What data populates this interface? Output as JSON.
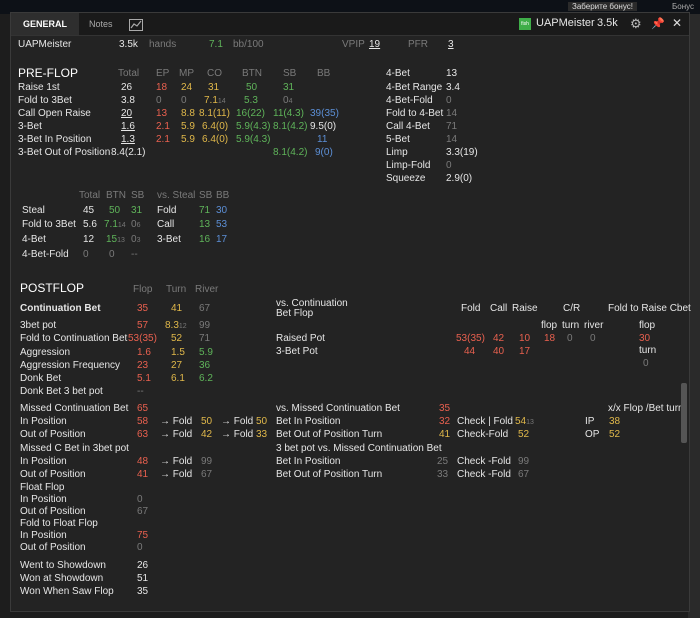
{
  "tabs": {
    "general": "GENERAL",
    "notes": "Notes"
  },
  "titlebar": {
    "player": "UAPMeister",
    "hands": "3.5k",
    "fish_badge": "fish"
  },
  "bg": {
    "bonus": "Заберите бонус!",
    "bonus2": "Бонус"
  },
  "summary": {
    "player": "UAPMeister",
    "hands_count": "3.5k",
    "hands_label": "hands",
    "bb100_val": "7.1",
    "bb100_label": "bb/100",
    "vpip_label": "VPIP",
    "vpip": "19",
    "pfr_label": "PFR",
    "pfr": "3"
  },
  "preflop": {
    "title": "PRE-FLOP",
    "headers": [
      "Total",
      "EP",
      "MP",
      "CO",
      "BTN",
      "SB",
      "BB"
    ],
    "rows": [
      {
        "label": "Raise 1st",
        "total": "26",
        "ep": "18",
        "mp": "24",
        "co": "31",
        "btn": "50",
        "sb": "31",
        "bb": ""
      },
      {
        "label": "Fold to 3Bet",
        "total": "3.8",
        "ep": "0",
        "mp": "0",
        "co": "7.1",
        "co_sub": "14",
        "btn": "5.3",
        "sb": "0",
        "sb_sub": "4",
        "bb": ""
      },
      {
        "label": "Call Open Raise",
        "total": "20",
        "ep": "13",
        "mp": "8.8",
        "co": "8.1(11)",
        "btn": "16(22)",
        "sb": "11(4.3)",
        "bb": "39(35)"
      },
      {
        "label": "3-Bet",
        "total": "1.6",
        "ep": "2.1",
        "mp": "5.9",
        "co": "6.4(0)",
        "btn": "5.9(4.3)",
        "sb": "8.1(4.2)",
        "bb": "9.5(0)"
      },
      {
        "label": "3-Bet In Position",
        "total": "1.3",
        "ep": "2.1",
        "mp": "5.9",
        "co": "6.4(0)",
        "btn": "5.9(4.3)",
        "sb": "",
        "bb": "11"
      },
      {
        "label": "3-Bet Out of Position",
        "total": "8.4(2.1)",
        "ep": "",
        "mp": "",
        "co": "",
        "btn": "",
        "sb": "8.1(4.2)",
        "bb": "9(0)"
      }
    ],
    "right": [
      {
        "label": "4-Bet",
        "value": "13"
      },
      {
        "label": "4-Bet Range",
        "value": "3.4"
      },
      {
        "label": "4-Bet-Fold",
        "value": "0"
      },
      {
        "label": "Fold to 4-Bet",
        "value": "14"
      },
      {
        "label": "Call 4-Bet",
        "value": "71"
      },
      {
        "label": "5-Bet",
        "value": "14"
      },
      {
        "label": "Limp",
        "value": "3.3(19)"
      },
      {
        "label": "Limp-Fold",
        "value": "0"
      },
      {
        "label": "Squeeze",
        "value": "2.9(0)"
      }
    ]
  },
  "steal": {
    "headers": [
      "Total",
      "BTN",
      "SB"
    ],
    "rows": [
      {
        "label": "Steal",
        "total": "45",
        "btn": "50",
        "sb": "31"
      },
      {
        "label": "Fold to 3Bet",
        "total": "5.6",
        "btn": "7.1",
        "btn_sub": "14",
        "sb": "0",
        "sb_sub": "6"
      },
      {
        "label": "4-Bet",
        "total": "12",
        "btn": "15",
        "btn_sub": "13",
        "sb": "0",
        "sb_sub": "3"
      },
      {
        "label": "4-Bet-Fold",
        "total": "0",
        "btn": "0",
        "sb": "--"
      }
    ],
    "vs_headers": [
      "vs. Steal",
      "SB",
      "BB"
    ],
    "vs_rows": [
      {
        "label": "Fold",
        "sb": "71",
        "bb": "30"
      },
      {
        "label": "Call",
        "sb": "13",
        "bb": "53"
      },
      {
        "label": "3-Bet",
        "sb": "16",
        "bb": "17"
      }
    ]
  },
  "postflop": {
    "title": "POSTFLOP",
    "headers": [
      "Flop",
      "Turn",
      "River"
    ],
    "cbet_label": "Continuation Bet",
    "cbet": [
      "35",
      "41",
      "67"
    ],
    "rows": [
      {
        "label": "3bet pot",
        "flop": "57",
        "turn": "8.3",
        "turn_sub": "12",
        "river": "99"
      },
      {
        "label": "Fold to Continuation Bet",
        "flop": "53(35)",
        "turn": "52",
        "river": "71"
      },
      {
        "label": "Aggression",
        "flop": "1.6",
        "turn": "1.5",
        "river": "5.9"
      },
      {
        "label": "Aggression Frequency",
        "flop": "23",
        "turn": "27",
        "river": "36"
      },
      {
        "label": "Donk Bet",
        "flop": "5.1",
        "turn": "6.1",
        "river": "6.2"
      },
      {
        "label": "Donk Bet 3 bet pot",
        "flop": "--",
        "turn": "",
        "river": ""
      }
    ],
    "vs_cbet": {
      "title_l1": "vs. Continuation",
      "title_l2": "Bet Flop",
      "headers": [
        "Fold",
        "Call",
        "Raise",
        "C/R",
        "Fold to Raise Cbet"
      ],
      "cr_sub": [
        "flop",
        "turn",
        "river"
      ],
      "ftr_sub": [
        "flop",
        "turn"
      ],
      "raised_pot": {
        "label": "Raised Pot",
        "fold": "53(35)",
        "call": "42",
        "raise": "10",
        "cr_flop": "18",
        "cr_turn": "0",
        "cr_river": "0",
        "ftr_flop": "30"
      },
      "three_bet_pot": {
        "label": "3-Bet Pot",
        "fold": "44",
        "call": "40",
        "raise": "17",
        "ftr_turn": "0"
      }
    }
  },
  "missed": {
    "title": "Missed Continuation Bet",
    "title_val": "65",
    "in_pos": {
      "label": "In Position",
      "v": "58",
      "fold_label": "→ Fold",
      "fold1": "50",
      "fold2_label": "→ Fold",
      "fold2": "50"
    },
    "out_pos": {
      "label": "Out of Position",
      "v": "63",
      "fold_label": "→ Fold",
      "fold1": "42",
      "fold2_label": "→ Fold",
      "fold2": "33"
    },
    "cbet3_title": "Missed C Bet in 3bet pot",
    "in_pos3": {
      "label": "In Position",
      "v": "48",
      "fold_label": "→ Fold",
      "fold1": "99"
    },
    "out_pos3": {
      "label": "Out of Position",
      "v": "41",
      "fold_label": "→ Fold",
      "fold1": "67"
    },
    "vs_title": "vs. Missed Continuation Bet",
    "vs_val": "35",
    "bet_ip": {
      "label": "Bet In Position",
      "v": "32",
      "action": "Check | Fold",
      "val": "54",
      "sub": "13"
    },
    "bet_oop_turn": {
      "label": "Bet Out of Position Turn",
      "v": "41",
      "action": "Check-Fold",
      "val": "52"
    },
    "vs3_title": "3 bet pot vs. Missed Continuation Bet",
    "bet_ip3": {
      "label": "Bet In Position",
      "v": "25",
      "action": "Check -Fold",
      "val": "99"
    },
    "bet_oop_turn3": {
      "label": "Bet Out of Position Turn",
      "v": "33",
      "action": "Check -Fold",
      "val": "67"
    },
    "xx_title": "x/x Flop /Bet turn",
    "xx_ip": {
      "label": "IP",
      "v": "38"
    },
    "xx_op": {
      "label": "OP",
      "v": "52"
    }
  },
  "float": {
    "title": "Float Flop",
    "in_pos": {
      "label": "In Position",
      "v": "0"
    },
    "out_pos": {
      "label": "Out of Position",
      "v": "67"
    },
    "fold_title": "Fold to Float Flop",
    "fold_in": {
      "label": "In Position",
      "v": "75"
    },
    "fold_out": {
      "label": "Out of Position",
      "v": "0"
    }
  },
  "showdown": [
    {
      "label": "Went to Showdown",
      "v": "26"
    },
    {
      "label": "Won at Showdown",
      "v": "51"
    },
    {
      "label": "Won When Saw Flop",
      "v": "35"
    }
  ]
}
